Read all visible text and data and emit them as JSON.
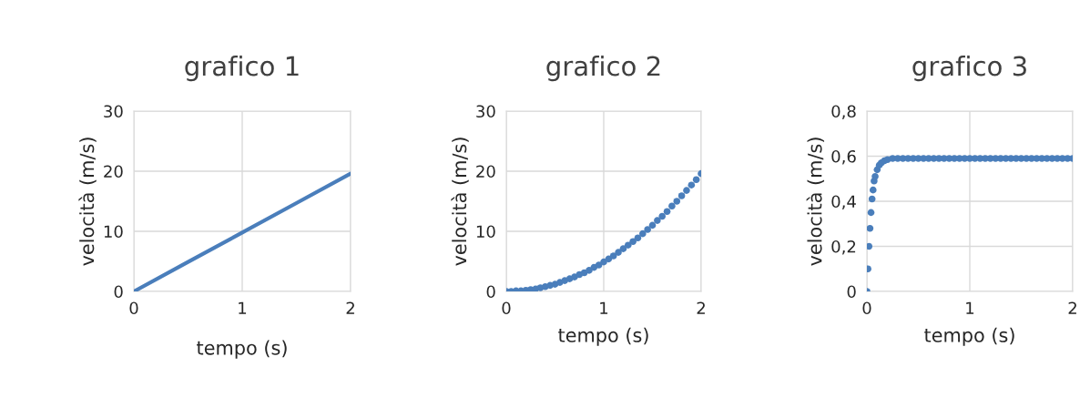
{
  "chart_data": [
    {
      "type": "line",
      "title": "grafico 1",
      "xlabel": "tempo (s)",
      "ylabel": "velocità (m/s)",
      "x": [
        0,
        0.5,
        1,
        1.5,
        2
      ],
      "series": [
        {
          "color": "#4a7ebb",
          "values": [
            0,
            4.9,
            9.8,
            14.7,
            19.6
          ]
        }
      ],
      "xlim": [
        0,
        2
      ],
      "xticks": [
        0,
        1,
        2
      ],
      "ylim": [
        0,
        30
      ],
      "yticks": [
        0,
        10,
        20,
        30
      ],
      "grid": true,
      "marker": "none"
    },
    {
      "type": "scatter",
      "title": "grafico 2",
      "xlabel": "tempo (s)",
      "ylabel": "velocità (m/s)",
      "x": [
        0,
        0.05,
        0.1,
        0.15,
        0.2,
        0.25,
        0.3,
        0.35,
        0.4,
        0.45,
        0.5,
        0.55,
        0.6,
        0.65,
        0.7,
        0.75,
        0.8,
        0.85,
        0.9,
        0.95,
        1,
        1.05,
        1.1,
        1.15,
        1.2,
        1.25,
        1.3,
        1.35,
        1.4,
        1.45,
        1.5,
        1.55,
        1.6,
        1.65,
        1.7,
        1.75,
        1.8,
        1.85,
        1.9,
        1.95,
        2
      ],
      "series": [
        {
          "color": "#4a7ebb",
          "values": [
            0,
            0.0,
            0.1,
            0.1,
            0.2,
            0.3,
            0.4,
            0.6,
            0.8,
            1.0,
            1.2,
            1.5,
            1.8,
            2.1,
            2.4,
            2.8,
            3.1,
            3.5,
            4.0,
            4.4,
            4.9,
            5.4,
            5.9,
            6.5,
            7.1,
            7.7,
            8.3,
            8.9,
            9.6,
            10.3,
            11.0,
            11.8,
            12.5,
            13.3,
            14.2,
            15.0,
            15.9,
            16.8,
            17.7,
            18.6,
            19.6
          ]
        }
      ],
      "xlim": [
        0,
        2
      ],
      "xticks": [
        0,
        1,
        2
      ],
      "ylim": [
        0,
        30
      ],
      "yticks": [
        0,
        10,
        20,
        30
      ],
      "grid": true,
      "marker": "circle"
    },
    {
      "type": "scatter",
      "title": "grafico 3",
      "xlabel": "tempo (s)",
      "ylabel": "velocità (m/s)",
      "x": [
        0,
        0.01,
        0.02,
        0.03,
        0.04,
        0.05,
        0.06,
        0.07,
        0.08,
        0.1,
        0.12,
        0.14,
        0.17,
        0.2,
        0.25,
        0.3,
        0.35,
        0.4,
        0.45,
        0.5,
        0.55,
        0.6,
        0.65,
        0.7,
        0.75,
        0.8,
        0.85,
        0.9,
        0.95,
        1,
        1.05,
        1.1,
        1.15,
        1.2,
        1.25,
        1.3,
        1.35,
        1.4,
        1.45,
        1.5,
        1.55,
        1.6,
        1.65,
        1.7,
        1.75,
        1.8,
        1.85,
        1.9,
        1.95,
        2
      ],
      "series": [
        {
          "color": "#4a7ebb",
          "values": [
            0,
            0.1,
            0.2,
            0.28,
            0.35,
            0.41,
            0.45,
            0.49,
            0.51,
            0.54,
            0.56,
            0.57,
            0.58,
            0.585,
            0.59,
            0.59,
            0.59,
            0.59,
            0.59,
            0.59,
            0.59,
            0.59,
            0.59,
            0.59,
            0.59,
            0.59,
            0.59,
            0.59,
            0.59,
            0.59,
            0.59,
            0.59,
            0.59,
            0.59,
            0.59,
            0.59,
            0.59,
            0.59,
            0.59,
            0.59,
            0.59,
            0.59,
            0.59,
            0.59,
            0.59,
            0.59,
            0.59,
            0.59,
            0.59,
            0.59
          ]
        }
      ],
      "xlim": [
        0,
        2
      ],
      "xticks": [
        0,
        1,
        2
      ],
      "ylim": [
        0,
        0.8
      ],
      "yticks": [
        0,
        {
          "value": 0.2,
          "label": "0,2"
        },
        {
          "value": 0.4,
          "label": "0,4"
        },
        {
          "value": 0.6,
          "label": "0,6"
        },
        {
          "value": 0.8,
          "label": "0,8"
        }
      ],
      "grid": true,
      "marker": "circle"
    }
  ]
}
